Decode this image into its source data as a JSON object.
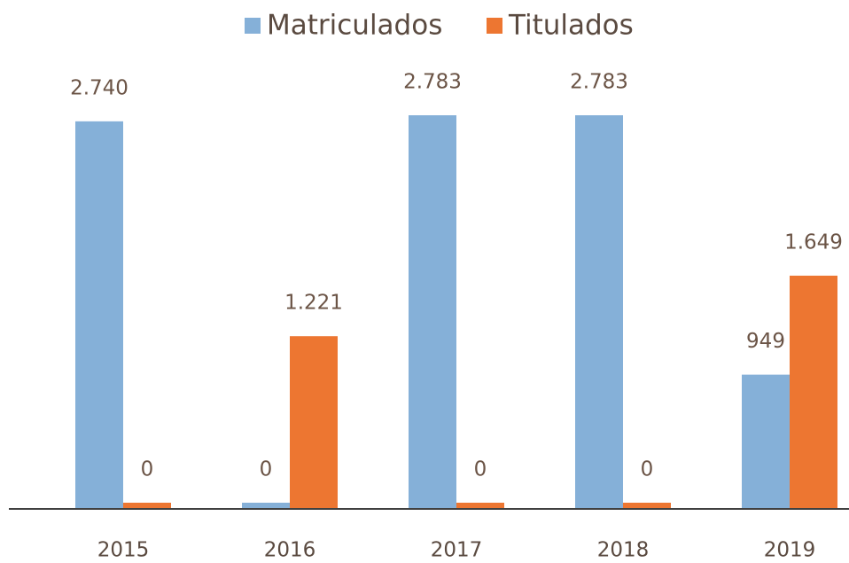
{
  "chart_data": {
    "type": "bar",
    "categories": [
      "2015",
      "2016",
      "2017",
      "2018",
      "2019"
    ],
    "series": [
      {
        "name": "Matriculados",
        "color": "#85b0d8",
        "values": [
          2740,
          0,
          2783,
          2783,
          949
        ],
        "value_labels": [
          "2.740",
          "0",
          "2.783",
          "2.783",
          "949"
        ]
      },
      {
        "name": "Titulados",
        "color": "#ed7631",
        "values": [
          0,
          1221,
          0,
          0,
          1649
        ],
        "value_labels": [
          "0",
          "1.221",
          "0",
          "0",
          "1.649"
        ]
      }
    ],
    "legend": "top"
  }
}
